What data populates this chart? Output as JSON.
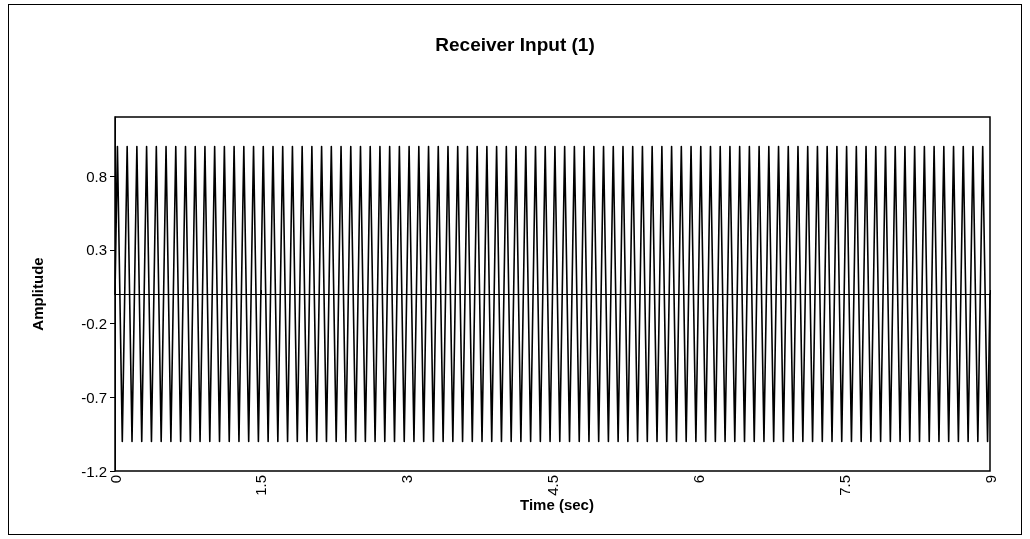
{
  "chart_data": {
    "type": "line",
    "title": "Receiver Input (1)",
    "xlabel": "Time (sec)",
    "ylabel": "Amplitude",
    "xlim": [
      0,
      9
    ],
    "xticks": [
      0,
      1.5,
      3,
      4.5,
      6,
      7.5,
      9
    ],
    "ylim": [
      -1.2,
      1.2
    ],
    "yticks": [
      -1.2,
      -0.7,
      -0.2,
      0.3,
      0.8
    ],
    "grid": false,
    "marker": "none",
    "line_style": "solid",
    "series": [
      {
        "color": "#000000",
        "x": [
          0,
          0.025,
          0.075,
          0.125,
          0.175,
          0.225,
          0.275,
          0.325,
          0.375,
          0.425,
          0.475,
          0.525,
          0.575,
          0.625,
          0.675,
          0.725,
          0.775,
          0.825,
          0.875,
          0.925,
          0.975,
          1.025,
          1.075,
          1.125,
          1.175,
          1.225,
          1.275,
          1.325,
          1.375,
          1.425,
          1.475,
          1.525,
          1.575,
          1.625,
          1.675,
          1.725,
          1.775,
          1.825,
          1.875,
          1.925,
          1.975,
          2.025,
          2.075,
          2.125,
          2.175,
          2.225,
          2.275,
          2.325,
          2.375,
          2.425,
          2.475,
          2.525,
          2.575,
          2.625,
          2.675,
          2.725,
          2.775,
          2.825,
          2.875,
          2.925,
          2.975,
          3.025,
          3.075,
          3.125,
          3.175,
          3.225,
          3.275,
          3.325,
          3.375,
          3.425,
          3.475,
          3.525,
          3.575,
          3.625,
          3.675,
          3.725,
          3.775,
          3.825,
          3.875,
          3.925,
          3.975,
          4.025,
          4.075,
          4.125,
          4.175,
          4.225,
          4.275,
          4.325,
          4.375,
          4.425,
          4.475,
          4.525,
          4.575,
          4.625,
          4.675,
          4.725,
          4.775,
          4.825,
          4.875,
          4.925,
          4.975,
          5.025,
          5.075,
          5.125,
          5.175,
          5.225,
          5.275,
          5.325,
          5.375,
          5.425,
          5.475,
          5.525,
          5.575,
          5.625,
          5.675,
          5.725,
          5.775,
          5.825,
          5.875,
          5.925,
          5.975,
          6.025,
          6.075,
          6.125,
          6.175,
          6.225,
          6.275,
          6.325,
          6.375,
          6.425,
          6.475,
          6.525,
          6.575,
          6.625,
          6.675,
          6.725,
          6.775,
          6.825,
          6.875,
          6.925,
          6.975,
          7.025,
          7.075,
          7.125,
          7.175,
          7.225,
          7.275,
          7.325,
          7.375,
          7.425,
          7.475,
          7.525,
          7.575,
          7.625,
          7.675,
          7.725,
          7.775,
          7.825,
          7.875,
          7.925,
          7.975,
          8.025,
          8.075,
          8.125,
          8.175,
          8.225,
          8.275,
          8.325,
          8.375,
          8.425,
          8.475,
          8.525,
          8.575,
          8.625,
          8.675,
          8.725,
          8.775,
          8.825,
          8.875,
          8.925,
          8.975,
          9
        ],
        "values": [
          0,
          1,
          -1,
          1,
          -1,
          1,
          -1,
          1,
          -1,
          1,
          -1,
          1,
          -1,
          1,
          -1,
          1,
          -1,
          1,
          -1,
          1,
          -1,
          1,
          -1,
          1,
          -1,
          1,
          -1,
          1,
          -1,
          1,
          -1,
          1,
          -1,
          1,
          -1,
          1,
          -1,
          1,
          -1,
          1,
          -1,
          1,
          -1,
          1,
          -1,
          1,
          -1,
          1,
          -1,
          1,
          -1,
          1,
          -1,
          1,
          -1,
          1,
          -1,
          1,
          -1,
          1,
          -1,
          1,
          -1,
          1,
          -1,
          1,
          -1,
          1,
          -1,
          1,
          -1,
          1,
          -1,
          1,
          -1,
          1,
          -1,
          1,
          -1,
          1,
          -1,
          1,
          -1,
          1,
          -1,
          1,
          -1,
          1,
          -1,
          1,
          -1,
          1,
          -1,
          1,
          -1,
          1,
          -1,
          1,
          -1,
          1,
          -1,
          1,
          -1,
          1,
          -1,
          1,
          -1,
          1,
          -1,
          1,
          -1,
          1,
          -1,
          1,
          -1,
          1,
          -1,
          1,
          -1,
          1,
          -1,
          1,
          -1,
          1,
          -1,
          1,
          -1,
          1,
          -1,
          1,
          -1,
          1,
          -1,
          1,
          -1,
          1,
          -1,
          1,
          -1,
          1,
          -1,
          1,
          -1,
          1,
          -1,
          1,
          -1,
          1,
          -1,
          1,
          -1,
          1,
          -1,
          1,
          -1,
          1,
          -1,
          1,
          -1,
          1,
          -1,
          1,
          -1,
          1,
          -1,
          1,
          -1,
          1,
          -1,
          1,
          -1,
          1,
          -1,
          1,
          -1,
          1,
          -1,
          1,
          -1,
          1,
          -1,
          0
        ]
      }
    ]
  }
}
